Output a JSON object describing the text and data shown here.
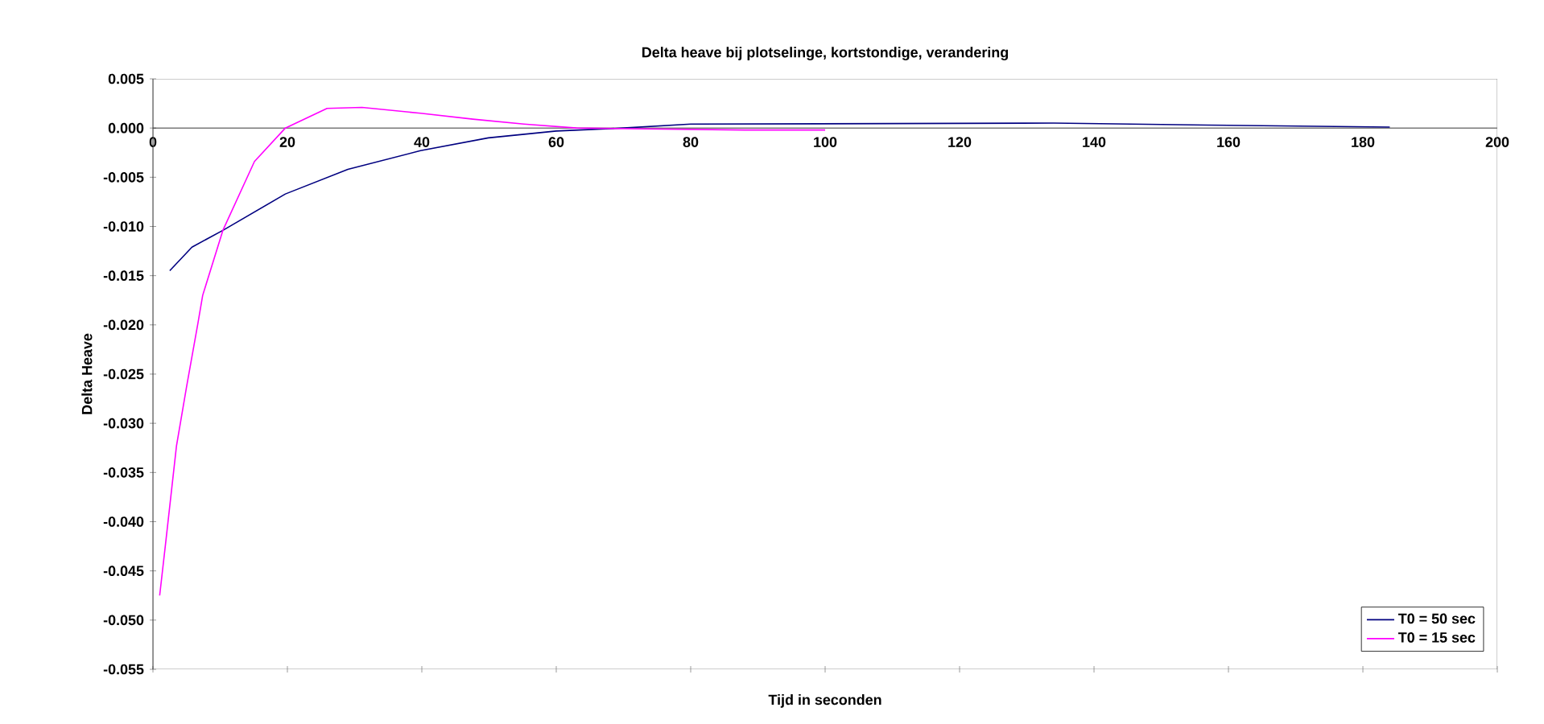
{
  "chart_data": {
    "type": "line",
    "title": "Delta heave bij plotselinge, kortstondige, verandering",
    "xlabel": "Tijd in seconden",
    "ylabel": "Delta Heave",
    "xlim": [
      0,
      200
    ],
    "ylim": [
      -0.055,
      0.005
    ],
    "xticks": [
      0,
      20,
      40,
      60,
      80,
      100,
      120,
      140,
      160,
      180,
      200
    ],
    "yticks": [
      {
        "value": 0.005,
        "label": "0.005"
      },
      {
        "value": 0,
        "label": "0.000"
      },
      {
        "value": -0.005,
        "label": "-0.005"
      },
      {
        "value": -0.01,
        "label": "-0.010"
      },
      {
        "value": -0.015,
        "label": "-0.015"
      },
      {
        "value": -0.02,
        "label": "-0.020"
      },
      {
        "value": -0.025,
        "label": "-0.025"
      },
      {
        "value": -0.03,
        "label": "-0.030"
      },
      {
        "value": -0.035,
        "label": "-0.035"
      },
      {
        "value": -0.04,
        "label": "-0.040"
      },
      {
        "value": -0.045,
        "label": "-0.045"
      },
      {
        "value": -0.05,
        "label": "-0.050"
      },
      {
        "value": -0.055,
        "label": "-0.055"
      }
    ],
    "legend": "bottom right",
    "series": [
      {
        "name": "T0 = 50 sec",
        "color": "#000080",
        "x": [
          2.5,
          5.8,
          10.4,
          19.7,
          29,
          39.8,
          49.9,
          60,
          70,
          80,
          134,
          157,
          184
        ],
        "values": [
          -0.0145,
          -0.0121,
          -0.0104,
          -0.0067,
          -0.0042,
          -0.0023,
          -0.001,
          -0.0003,
          0.0,
          0.0004,
          0.0005,
          0.0003,
          0.0001
        ]
      },
      {
        "name": "T0 = 15 sec",
        "color": "#ff00ff",
        "x": [
          1,
          1.9,
          3.5,
          5.0,
          6.7,
          7.4,
          10.4,
          15.1,
          19.7,
          25.9,
          31.1,
          39.8,
          47.6,
          55.2,
          63,
          88,
          100
        ],
        "values": [
          -0.0475,
          -0.0421,
          -0.0323,
          -0.0263,
          -0.0198,
          -0.017,
          -0.0104,
          -0.0034,
          0.0,
          0.002,
          0.0021,
          0.0015,
          0.0009,
          0.0004,
          0.0,
          -0.0002,
          -0.0002
        ]
      }
    ]
  }
}
